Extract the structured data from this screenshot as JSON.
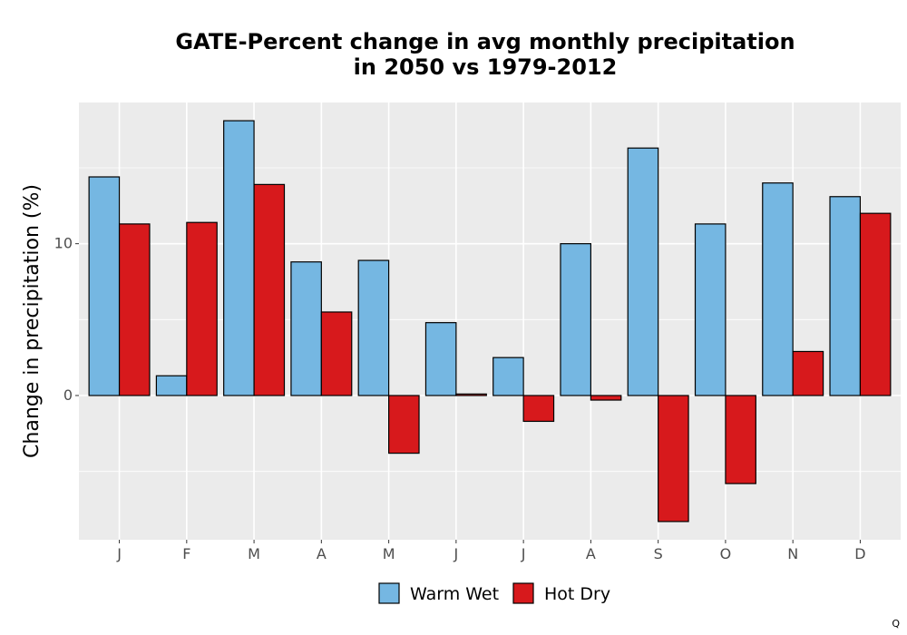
{
  "chart_data": {
    "type": "bar",
    "title_lines": [
      "GATE-Percent change in avg monthly precipitation",
      "in 2050 vs 1979-2012"
    ],
    "xlabel": "",
    "ylabel": "Change in precipitation (%)",
    "categories": [
      "J",
      "F",
      "M",
      "A",
      "M",
      "J",
      "J",
      "A",
      "S",
      "O",
      "N",
      "D"
    ],
    "series": [
      {
        "name": "Warm Wet",
        "color": "#75B7E2",
        "values": [
          14.4,
          1.3,
          18.1,
          8.8,
          8.9,
          4.8,
          2.5,
          10.0,
          16.3,
          11.3,
          14.0,
          13.1
        ]
      },
      {
        "name": "Hot Dry",
        "color": "#D7191C",
        "values": [
          11.3,
          11.4,
          13.9,
          5.5,
          -3.8,
          0.1,
          -1.7,
          -0.3,
          -8.3,
          -5.8,
          2.9,
          12.0
        ]
      }
    ],
    "ylim": [
      -9.5,
      19.3
    ],
    "yticks": [
      0,
      10
    ],
    "grid": true,
    "legend_position": "bottom",
    "panel_background": "#EBEBEB",
    "grid_color": "#FFFFFF"
  },
  "corner_mark": "Q"
}
